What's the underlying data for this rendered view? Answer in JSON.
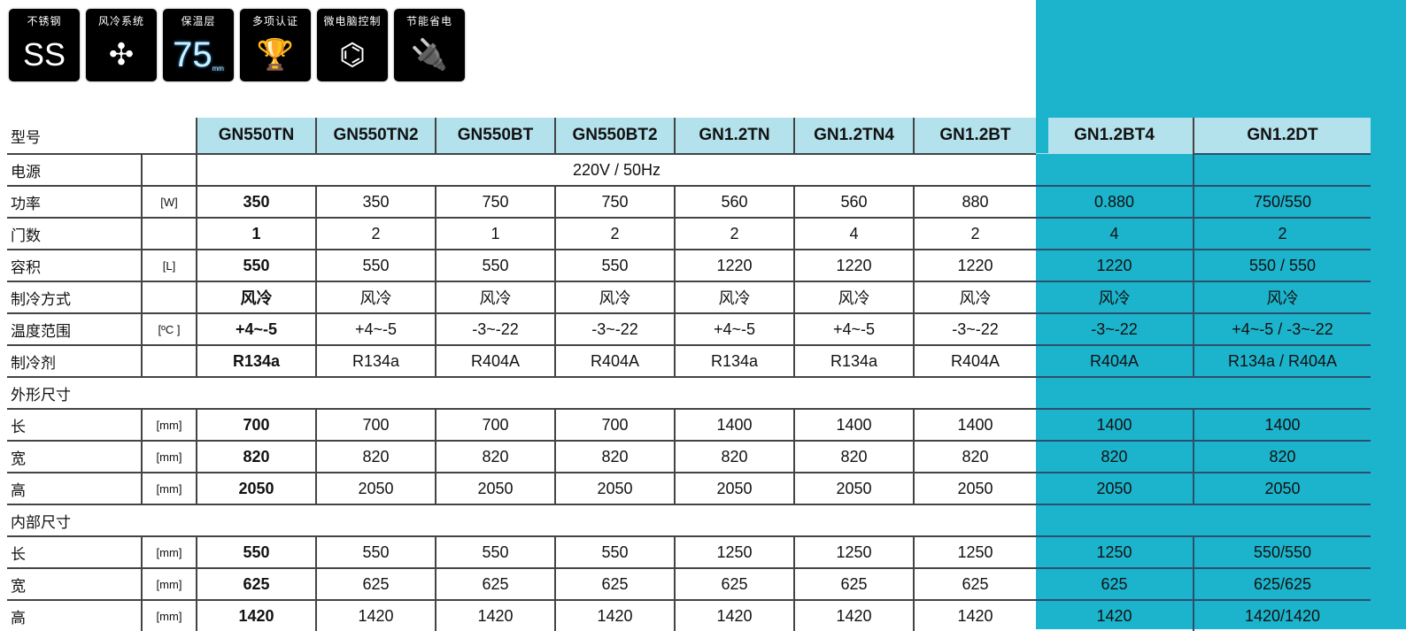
{
  "colors": {
    "teal": "#1cb4cc",
    "header": "#b3e1ec"
  },
  "features": [
    {
      "label": "不锈钢",
      "glyph": "SS",
      "icon": "stainless-steel-icon"
    },
    {
      "label": "风冷系统",
      "glyph": "✣",
      "icon": "fan-icon"
    },
    {
      "label": "保温层",
      "glyph": "75",
      "sub": "mm",
      "icon": "insulation-icon"
    },
    {
      "label": "多项认证",
      "glyph": "🏆",
      "icon": "trophy-star-icon"
    },
    {
      "label": "微电脑控制",
      "glyph": "⌬",
      "icon": "circuit-icon"
    },
    {
      "label": "节能省电",
      "glyph": "🔌",
      "icon": "plug-leaf-icon"
    }
  ],
  "table": {
    "header_label": "型号",
    "models": [
      "GN550TN",
      "GN550TN2",
      "GN550BT",
      "GN550BT2",
      "GN1.2TN",
      "GN1.2TN4",
      "GN1.2BT",
      "GN1.2BT4",
      "GN1.2DT"
    ],
    "power_supply": {
      "label": "电源",
      "value": "220V / 50Hz"
    },
    "rows": [
      {
        "label": "功率",
        "unit": "[W]",
        "values": [
          "350",
          "350",
          "750",
          "750",
          "560",
          "560",
          "880",
          "0.880",
          "750/550"
        ]
      },
      {
        "label": "门数",
        "unit": "",
        "values": [
          "1",
          "2",
          "1",
          "2",
          "2",
          "4",
          "2",
          "4",
          "2"
        ]
      },
      {
        "label": "容积",
        "unit": "[L]",
        "values": [
          "550",
          "550",
          "550",
          "550",
          "1220",
          "1220",
          "1220",
          "1220",
          "550 / 550"
        ]
      },
      {
        "label": "制冷方式",
        "unit": "",
        "values": [
          "风冷",
          "风冷",
          "风冷",
          "风冷",
          "风冷",
          "风冷",
          "风冷",
          "风冷",
          "风冷"
        ]
      },
      {
        "label": "温度范围",
        "unit": "[ºC ]",
        "values": [
          "+4~-5",
          "+4~-5",
          "-3~-22",
          "-3~-22",
          "+4~-5",
          "+4~-5",
          "-3~-22",
          "-3~-22",
          "+4~-5 / -3~-22"
        ]
      },
      {
        "label": "制冷剂",
        "unit": "",
        "values": [
          "R134a",
          "R134a",
          "R404A",
          "R404A",
          "R134a",
          "R134a",
          "R404A",
          "R404A",
          "R134a / R404A"
        ]
      },
      {
        "group": "外形尺寸"
      },
      {
        "label": "长",
        "unit": "[mm]",
        "values": [
          "700",
          "700",
          "700",
          "700",
          "1400",
          "1400",
          "1400",
          "1400",
          "1400"
        ]
      },
      {
        "label": "宽",
        "unit": "[mm]",
        "values": [
          "820",
          "820",
          "820",
          "820",
          "820",
          "820",
          "820",
          "820",
          "820"
        ]
      },
      {
        "label": "高",
        "unit": "[mm]",
        "values": [
          "2050",
          "2050",
          "2050",
          "2050",
          "2050",
          "2050",
          "2050",
          "2050",
          "2050"
        ]
      },
      {
        "group": "内部尺寸"
      },
      {
        "label": "长",
        "unit": "[mm]",
        "values": [
          "550",
          "550",
          "550",
          "550",
          "1250",
          "1250",
          "1250",
          "1250",
          "550/550"
        ]
      },
      {
        "label": "宽",
        "unit": "[mm]",
        "values": [
          "625",
          "625",
          "625",
          "625",
          "625",
          "625",
          "625",
          "625",
          "625/625"
        ]
      },
      {
        "label": "高",
        "unit": "[mm]",
        "values": [
          "1420",
          "1420",
          "1420",
          "1420",
          "1420",
          "1420",
          "1420",
          "1420",
          "1420/1420"
        ]
      }
    ]
  }
}
